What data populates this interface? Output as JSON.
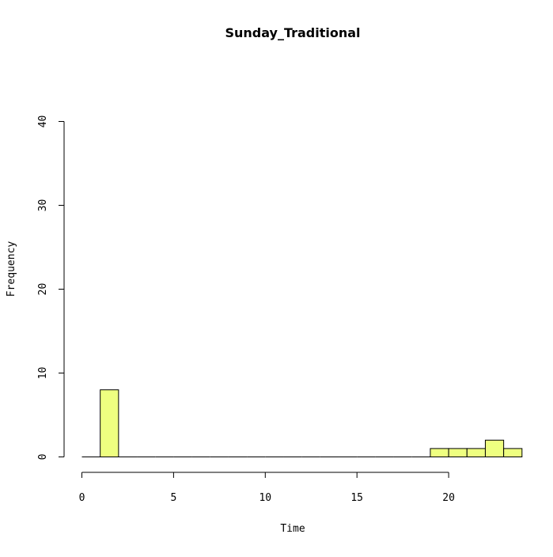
{
  "chart_data": {
    "type": "bar",
    "title": "Sunday_Traditional",
    "xlabel": "Time",
    "ylabel": "Frequency",
    "xlim": [
      0,
      24
    ],
    "ylim": [
      0,
      40
    ],
    "x_ticks": [
      0,
      5,
      10,
      15,
      20
    ],
    "y_ticks": [
      0,
      10,
      20,
      30,
      40
    ],
    "bin_width": 1,
    "bins": [
      {
        "start": 0,
        "end": 1,
        "count": 0
      },
      {
        "start": 1,
        "end": 2,
        "count": 8
      },
      {
        "start": 2,
        "end": 3,
        "count": 0
      },
      {
        "start": 3,
        "end": 4,
        "count": 0
      },
      {
        "start": 4,
        "end": 5,
        "count": 0
      },
      {
        "start": 5,
        "end": 6,
        "count": 0
      },
      {
        "start": 6,
        "end": 7,
        "count": 0
      },
      {
        "start": 7,
        "end": 8,
        "count": 0
      },
      {
        "start": 8,
        "end": 9,
        "count": 0
      },
      {
        "start": 9,
        "end": 10,
        "count": 0
      },
      {
        "start": 10,
        "end": 11,
        "count": 0
      },
      {
        "start": 11,
        "end": 12,
        "count": 0
      },
      {
        "start": 12,
        "end": 13,
        "count": 0
      },
      {
        "start": 13,
        "end": 14,
        "count": 0
      },
      {
        "start": 14,
        "end": 15,
        "count": 0
      },
      {
        "start": 15,
        "end": 16,
        "count": 0
      },
      {
        "start": 16,
        "end": 17,
        "count": 0
      },
      {
        "start": 17,
        "end": 18,
        "count": 0
      },
      {
        "start": 18,
        "end": 19,
        "count": 0
      },
      {
        "start": 19,
        "end": 20,
        "count": 1
      },
      {
        "start": 20,
        "end": 21,
        "count": 1
      },
      {
        "start": 21,
        "end": 22,
        "count": 1
      },
      {
        "start": 22,
        "end": 23,
        "count": 2
      },
      {
        "start": 23,
        "end": 24,
        "count": 1
      }
    ],
    "bar_color": "#eeff80",
    "bar_edge_color": "#000000",
    "grid": false,
    "legend": "none"
  }
}
